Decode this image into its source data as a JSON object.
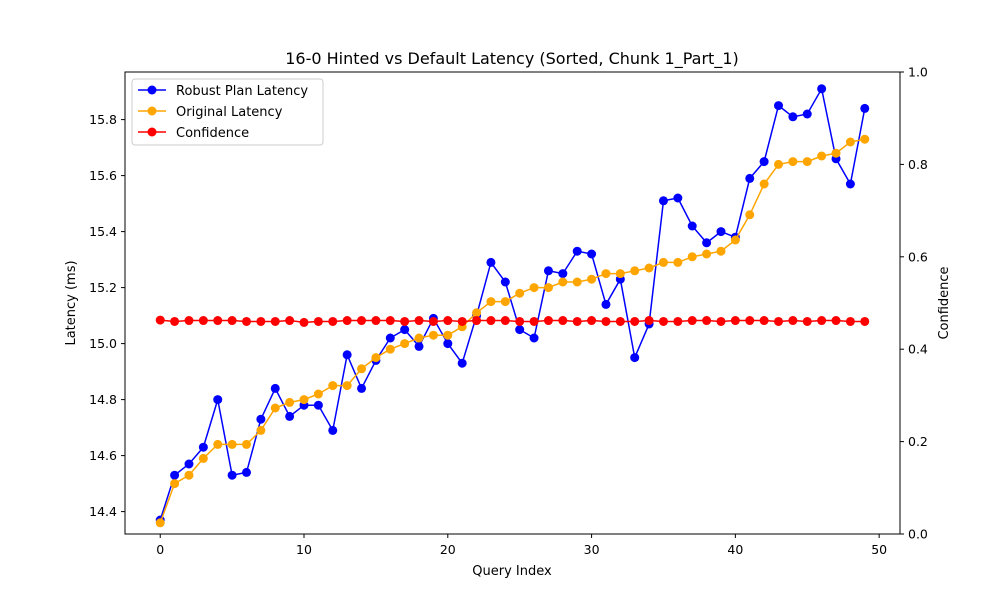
{
  "chart_data": {
    "type": "line",
    "title": "16-0 Hinted vs Default Latency (Sorted, Chunk 1_Part_1)",
    "xlabel": "Query Index",
    "ylabel": "Latency (ms)",
    "y2label": "Confidence",
    "xlim": [
      -2.45,
      51.45
    ],
    "ylim": [
      14.32,
      15.97
    ],
    "y2lim": [
      0,
      1
    ],
    "xticks": [
      0,
      10,
      20,
      30,
      40,
      50
    ],
    "yticks": [
      14.4,
      14.6,
      14.8,
      15.0,
      15.2,
      15.4,
      15.6,
      15.8
    ],
    "y2ticks": [
      0.0,
      0.2,
      0.4,
      0.6,
      0.8,
      1.0
    ],
    "xtick_labels": [
      "0",
      "10",
      "20",
      "30",
      "40",
      "50"
    ],
    "ytick_labels": [
      "14.4",
      "14.6",
      "14.8",
      "15.0",
      "15.2",
      "15.4",
      "15.6",
      "15.8"
    ],
    "y2tick_labels": [
      "0.0",
      "0.2",
      "0.4",
      "0.6",
      "0.8",
      "1.0"
    ],
    "legend_position": "upper-left",
    "grid": false,
    "x": [
      0,
      1,
      2,
      3,
      4,
      5,
      6,
      7,
      8,
      9,
      10,
      11,
      12,
      13,
      14,
      15,
      16,
      17,
      18,
      19,
      20,
      21,
      22,
      23,
      24,
      25,
      26,
      27,
      28,
      29,
      30,
      31,
      32,
      33,
      34,
      35,
      36,
      37,
      38,
      39,
      40,
      41,
      42,
      43,
      44,
      45,
      46,
      47,
      48,
      49
    ],
    "series": [
      {
        "name": "Robust Plan Latency",
        "color": "#0000ff",
        "axis": "left",
        "values": [
          14.37,
          14.53,
          14.57,
          14.63,
          14.8,
          14.53,
          14.54,
          14.73,
          14.84,
          14.74,
          14.78,
          14.78,
          14.69,
          14.96,
          14.84,
          14.94,
          15.02,
          15.05,
          14.99,
          15.09,
          15.0,
          14.93,
          15.1,
          15.29,
          15.22,
          15.05,
          15.02,
          15.26,
          15.25,
          15.33,
          15.32,
          15.14,
          15.23,
          14.95,
          15.07,
          15.51,
          15.52,
          15.42,
          15.36,
          15.4,
          15.38,
          15.59,
          15.65,
          15.85,
          15.81,
          15.82,
          15.91,
          15.66,
          15.57,
          15.84
        ]
      },
      {
        "name": "Original Latency",
        "color": "#ffa500",
        "axis": "left",
        "values": [
          14.36,
          14.5,
          14.53,
          14.59,
          14.64,
          14.64,
          14.64,
          14.69,
          14.77,
          14.79,
          14.8,
          14.82,
          14.85,
          14.85,
          14.91,
          14.95,
          14.98,
          15.0,
          15.02,
          15.03,
          15.03,
          15.06,
          15.11,
          15.15,
          15.15,
          15.18,
          15.2,
          15.2,
          15.22,
          15.22,
          15.23,
          15.25,
          15.25,
          15.26,
          15.27,
          15.29,
          15.29,
          15.31,
          15.32,
          15.33,
          15.37,
          15.46,
          15.57,
          15.64,
          15.65,
          15.65,
          15.67,
          15.68,
          15.72,
          15.73
        ]
      },
      {
        "name": "Confidence",
        "color": "#ff0000",
        "axis": "right",
        "values": [
          0.463,
          0.46,
          0.462,
          0.462,
          0.462,
          0.462,
          0.46,
          0.46,
          0.46,
          0.462,
          0.458,
          0.46,
          0.46,
          0.462,
          0.462,
          0.462,
          0.462,
          0.46,
          0.462,
          0.46,
          0.462,
          0.46,
          0.462,
          0.462,
          0.462,
          0.46,
          0.46,
          0.462,
          0.462,
          0.46,
          0.462,
          0.46,
          0.46,
          0.46,
          0.462,
          0.46,
          0.46,
          0.462,
          0.462,
          0.46,
          0.462,
          0.462,
          0.462,
          0.46,
          0.462,
          0.46,
          0.462,
          0.462,
          0.46,
          0.46
        ]
      }
    ]
  }
}
